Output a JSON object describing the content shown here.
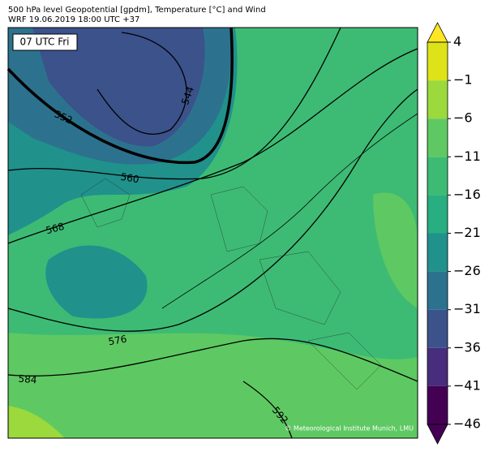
{
  "header": {
    "title": "500 hPa level Geopotential [gpdm], Temperature [°C] and Wind",
    "subtitle": "WRF 19.06.2019 18:00 UTC +37"
  },
  "map": {
    "time_label": "07 UTC Fri",
    "contour_labels": [
      544,
      552,
      560,
      568,
      576,
      584,
      592
    ],
    "credit": "© Meteorological Institute Munich, LMU"
  },
  "colorbar": {
    "lim": [
      -46,
      4
    ],
    "ticks": [
      {
        "value": 4,
        "label": "4"
      },
      {
        "value": -1,
        "label": "−1"
      },
      {
        "value": -6,
        "label": "−6"
      },
      {
        "value": -11,
        "label": "−11"
      },
      {
        "value": -16,
        "label": "−16"
      },
      {
        "value": -21,
        "label": "−21"
      },
      {
        "value": -26,
        "label": "−26"
      },
      {
        "value": -31,
        "label": "−31"
      },
      {
        "value": -36,
        "label": "−36"
      },
      {
        "value": -41,
        "label": "−41"
      },
      {
        "value": -46,
        "label": "−46"
      }
    ],
    "colors": [
      "#440154",
      "#472d7b",
      "#3b528b",
      "#2c728e",
      "#21918c",
      "#28ae80",
      "#3dbb74",
      "#5ec962",
      "#9bd93c",
      "#dde318"
    ],
    "over_color": "#fde725",
    "under_color": "#440154"
  }
}
